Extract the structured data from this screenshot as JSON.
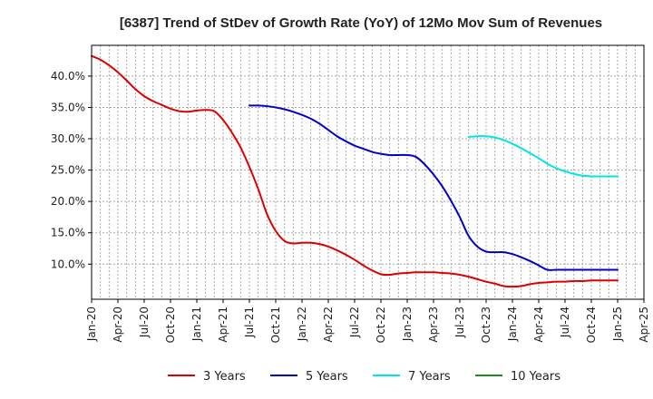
{
  "chart_data": {
    "type": "line",
    "title": "[6387]  Trend of StDev of Growth Rate (YoY) of 12Mo Mov Sum of Revenues",
    "xlabel": "",
    "ylabel": "",
    "x_tick_labels": [
      "Jan-20",
      "Apr-20",
      "Jul-20",
      "Oct-20",
      "Jan-21",
      "Apr-21",
      "Jul-21",
      "Oct-21",
      "Jan-22",
      "Apr-22",
      "Jul-22",
      "Oct-22",
      "Jan-23",
      "Apr-23",
      "Jul-23",
      "Oct-23",
      "Jan-24",
      "Apr-24",
      "Jul-24",
      "Oct-24",
      "Jan-25",
      "Apr-25"
    ],
    "y_ticks": [
      10,
      15,
      20,
      25,
      30,
      35,
      40
    ],
    "y_tick_labels": [
      "10.0%",
      "15.0%",
      "20.0%",
      "25.0%",
      "30.0%",
      "35.0%",
      "40.0%"
    ],
    "ylim": [
      4.4,
      44.9
    ],
    "x_month_range": [
      0,
      63
    ],
    "grid": true,
    "legend_position": "bottom",
    "series": [
      {
        "name": "3 Years",
        "color": "#dd0000",
        "months": [
          0,
          1,
          2,
          3,
          4,
          5,
          6,
          7,
          8,
          9,
          10,
          11,
          12,
          13,
          14,
          15,
          16,
          17,
          18,
          19,
          20,
          21,
          22,
          23,
          24,
          25,
          26,
          27,
          28,
          29,
          30,
          31,
          32,
          33,
          34,
          35,
          36,
          37,
          38,
          39,
          40,
          41,
          42,
          43,
          44,
          45,
          46,
          47,
          48,
          49,
          50,
          51,
          52,
          53,
          54,
          55,
          56,
          57,
          58,
          59,
          60
        ],
        "values": [
          43.2,
          42.6,
          41.7,
          40.6,
          39.3,
          37.9,
          36.8,
          36.0,
          35.4,
          34.8,
          34.4,
          34.3,
          34.5,
          34.6,
          34.4,
          33.0,
          31.0,
          28.6,
          25.5,
          22.0,
          18.0,
          15.3,
          13.7,
          13.3,
          13.4,
          13.4,
          13.2,
          12.8,
          12.2,
          11.5,
          10.7,
          9.8,
          9.0,
          8.4,
          8.3,
          8.5,
          8.6,
          8.7,
          8.7,
          8.7,
          8.6,
          8.5,
          8.3,
          8.0,
          7.6,
          7.2,
          6.9,
          6.5,
          6.4,
          6.5,
          6.8,
          7.0,
          7.1,
          7.2,
          7.2,
          7.3,
          7.3,
          7.4,
          7.4,
          7.4,
          7.4
        ]
      },
      {
        "name": "5 Years",
        "color": "#0000cc",
        "months": [
          18,
          19,
          20,
          21,
          22,
          23,
          24,
          25,
          26,
          27,
          28,
          29,
          30,
          31,
          32,
          33,
          34,
          35,
          36,
          37,
          38,
          39,
          40,
          41,
          42,
          43,
          44,
          45,
          46,
          47,
          48,
          49,
          50,
          51,
          52,
          53,
          54,
          55,
          56,
          57,
          58,
          59,
          60
        ],
        "values": [
          35.3,
          35.3,
          35.2,
          35.0,
          34.7,
          34.3,
          33.8,
          33.2,
          32.4,
          31.4,
          30.4,
          29.6,
          28.9,
          28.4,
          27.9,
          27.6,
          27.4,
          27.4,
          27.4,
          27.1,
          25.9,
          24.3,
          22.4,
          20.1,
          17.5,
          14.5,
          12.8,
          12.0,
          11.9,
          11.9,
          11.6,
          11.1,
          10.5,
          9.8,
          9.1,
          9.1,
          9.1,
          9.1,
          9.1,
          9.1,
          9.1,
          9.1,
          9.1
        ]
      },
      {
        "name": "7 Years",
        "color": "#00e5e5",
        "months": [
          43,
          44,
          45,
          46,
          47,
          48,
          49,
          50,
          51,
          52,
          53,
          54,
          55,
          56,
          57,
          58,
          59,
          60
        ],
        "values": [
          30.3,
          30.4,
          30.4,
          30.2,
          29.8,
          29.2,
          28.5,
          27.7,
          26.9,
          26.0,
          25.3,
          24.8,
          24.4,
          24.1,
          24.0,
          24.0,
          24.0,
          24.0
        ]
      },
      {
        "name": "10 Years",
        "color": "#228822",
        "months": [],
        "values": []
      }
    ]
  }
}
